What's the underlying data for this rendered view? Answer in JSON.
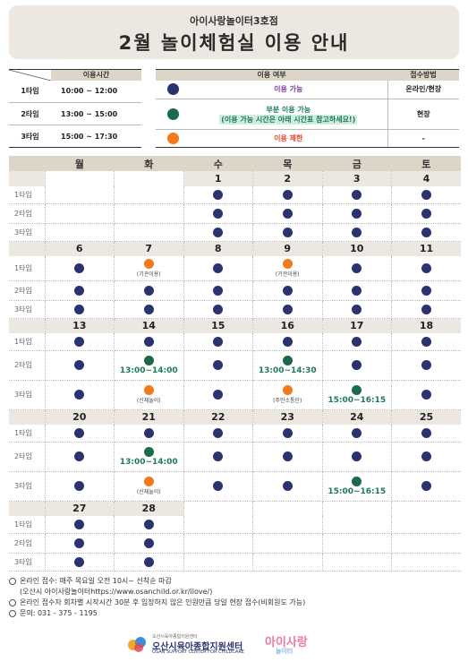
{
  "header": {
    "subtitle": "아이사랑놀이터3호점",
    "title": "2월 놀이체험실 이용 안내"
  },
  "time_table": {
    "header": "이용시간",
    "rows": [
      {
        "slot": "1타임",
        "time": "10:00 ~ 12:00"
      },
      {
        "slot": "2타임",
        "time": "13:00 ~ 15:00"
      },
      {
        "slot": "3타임",
        "time": "15:00 ~ 17:30"
      }
    ]
  },
  "legend": {
    "header_status": "이용 여부",
    "header_method": "접수방법",
    "rows": [
      {
        "color": "navy",
        "text": "이용 가능",
        "text2": "",
        "method": "온라인/현장"
      },
      {
        "color": "green",
        "text": "부분 이용 가능",
        "text2": "(이용 가능 시간은 아래 시간표 참고하세요!)",
        "method": "현장"
      },
      {
        "color": "orange",
        "text": "이용 제한",
        "text2": "",
        "method": "-"
      }
    ]
  },
  "calendar": {
    "days": [
      "월",
      "화",
      "수",
      "목",
      "금",
      "토"
    ],
    "slot_labels": [
      "1타임",
      "2타임",
      "3타임"
    ],
    "weeks": [
      {
        "dates": [
          "",
          "",
          "1",
          "2",
          "3",
          "4"
        ],
        "slots": [
          [
            null,
            null,
            {
              "c": "navy"
            },
            {
              "c": "navy"
            },
            {
              "c": "navy"
            },
            {
              "c": "navy"
            }
          ],
          [
            null,
            null,
            {
              "c": "navy"
            },
            {
              "c": "navy"
            },
            {
              "c": "navy"
            },
            {
              "c": "navy"
            }
          ],
          [
            null,
            null,
            {
              "c": "navy"
            },
            {
              "c": "navy"
            },
            {
              "c": "navy"
            },
            {
              "c": "navy"
            }
          ]
        ]
      },
      {
        "dates": [
          "6",
          "7",
          "8",
          "9",
          "10",
          "11"
        ],
        "slots": [
          [
            {
              "c": "navy"
            },
            {
              "c": "orange",
              "s": "(기관이용)"
            },
            {
              "c": "navy"
            },
            {
              "c": "orange",
              "s": "(기관이용)"
            },
            {
              "c": "navy"
            },
            {
              "c": "navy"
            }
          ],
          [
            {
              "c": "navy"
            },
            {
              "c": "navy"
            },
            {
              "c": "navy"
            },
            {
              "c": "navy"
            },
            {
              "c": "navy"
            },
            {
              "c": "navy"
            }
          ],
          [
            {
              "c": "navy"
            },
            {
              "c": "navy"
            },
            {
              "c": "navy"
            },
            {
              "c": "navy"
            },
            {
              "c": "navy"
            },
            {
              "c": "navy"
            }
          ]
        ]
      },
      {
        "dates": [
          "13",
          "14",
          "15",
          "16",
          "17",
          "18"
        ],
        "slots": [
          [
            {
              "c": "navy"
            },
            {
              "c": "navy"
            },
            {
              "c": "navy"
            },
            {
              "c": "navy"
            },
            {
              "c": "navy"
            },
            {
              "c": "navy"
            }
          ],
          [
            {
              "c": "navy"
            },
            {
              "c": "green",
              "t": "13:00~14:00"
            },
            {
              "c": "navy"
            },
            {
              "c": "green",
              "t": "13:00~14:30"
            },
            {
              "c": "navy"
            },
            {
              "c": "navy"
            }
          ],
          [
            {
              "c": "navy"
            },
            {
              "c": "orange",
              "s": "(신체놀이)"
            },
            {
              "c": "navy"
            },
            {
              "c": "orange",
              "s": "(주민소통단)"
            },
            {
              "c": "green",
              "t": "15:00~16:15"
            },
            {
              "c": "navy"
            }
          ]
        ]
      },
      {
        "dates": [
          "20",
          "21",
          "22",
          "23",
          "24",
          "25"
        ],
        "slots": [
          [
            {
              "c": "navy"
            },
            {
              "c": "navy"
            },
            {
              "c": "navy"
            },
            {
              "c": "navy"
            },
            {
              "c": "navy"
            },
            {
              "c": "navy"
            }
          ],
          [
            {
              "c": "navy"
            },
            {
              "c": "green",
              "t": "13:00~14:00"
            },
            {
              "c": "navy"
            },
            {
              "c": "navy"
            },
            {
              "c": "navy"
            },
            {
              "c": "navy"
            }
          ],
          [
            {
              "c": "navy"
            },
            {
              "c": "orange",
              "s": "(신체놀이)"
            },
            {
              "c": "navy"
            },
            {
              "c": "navy"
            },
            {
              "c": "green",
              "t": "15:00~16:15"
            },
            {
              "c": "navy"
            }
          ]
        ]
      },
      {
        "dates": [
          "27",
          "28",
          "",
          "",
          "",
          ""
        ],
        "slots": [
          [
            {
              "c": "navy"
            },
            {
              "c": "navy"
            },
            null,
            null,
            null,
            null
          ],
          [
            {
              "c": "navy"
            },
            {
              "c": "navy"
            },
            null,
            null,
            null,
            null
          ],
          [
            {
              "c": "navy"
            },
            {
              "c": "navy"
            },
            null,
            null,
            null,
            null
          ]
        ]
      }
    ]
  },
  "footer": {
    "line1": "온라인 접수: 매주 목요일 오전 10시~ 선착순 마감",
    "line1b": "(오산시 아이사랑놀이터https://www.osanchild.or.kr/ilove/)",
    "line2": "온라인 접수자 회차별 시작시간 30분 후 입장하지 않은 인원만큼 당일 현장 접수(비회원도 가능)",
    "line3": "문의: 031 - 375 - 1195"
  },
  "logos": {
    "center_name": "오산시육아종합지원센터",
    "center_en": "OSAN SUPPORT CENTER FOR CHILDCARE",
    "center_tiny": "오산시육아종합지원센터",
    "brand": "아이사랑",
    "brand_sub": "놀이터"
  },
  "colors": {
    "navy": "#2b3270",
    "green": "#1b6b4b",
    "orange": "#f27a1a",
    "header_bg": "#ece7e1",
    "table_header_bg": "#ddd5c8"
  }
}
